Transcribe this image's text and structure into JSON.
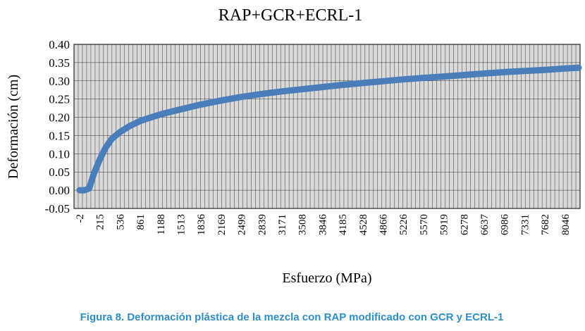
{
  "chart_data": {
    "type": "line",
    "title": "RAP+GCR+ECRL-1",
    "xlabel": "Esfuerzo (MPa)",
    "ylabel": "Deformación (cm)",
    "ylim": [
      -0.05,
      0.4
    ],
    "yticks": [
      "0.40",
      "0.35",
      "0.30",
      "0.25",
      "0.20",
      "0.15",
      "0.10",
      "0.05",
      "0.00",
      "-0.05"
    ],
    "xticks": [
      "-2",
      "215",
      "536",
      "861",
      "1188",
      "1513",
      "1836",
      "2169",
      "2499",
      "2839",
      "3171",
      "3508",
      "3846",
      "4185",
      "4528",
      "4866",
      "5226",
      "5570",
      "5919",
      "6278",
      "6637",
      "6986",
      "7331",
      "7682",
      "8046"
    ],
    "grid": true,
    "legend": "none",
    "series_color": "#4a7ebb",
    "series": [
      {
        "x": [
          -2,
          50,
          100,
          150,
          215,
          300,
          400,
          536,
          700,
          861,
          1000,
          1188,
          1350,
          1513,
          1836,
          2169,
          2499,
          2839,
          3171,
          3508,
          3846,
          4185,
          4528,
          4866,
          5226,
          5570,
          5919,
          6278,
          6637,
          6986,
          7331,
          7682,
          8046,
          8400
        ],
        "y": [
          0.0,
          0.0,
          0.005,
          0.045,
          0.085,
          0.115,
          0.14,
          0.16,
          0.177,
          0.19,
          0.198,
          0.208,
          0.215,
          0.222,
          0.235,
          0.246,
          0.256,
          0.264,
          0.271,
          0.277,
          0.283,
          0.289,
          0.294,
          0.299,
          0.304,
          0.308,
          0.312,
          0.316,
          0.32,
          0.324,
          0.327,
          0.33,
          0.334,
          0.336
        ]
      }
    ]
  },
  "caption": "Figura 8. Deformación plástica de la mezcla con RAP modificado con GCR y ECRL-1"
}
